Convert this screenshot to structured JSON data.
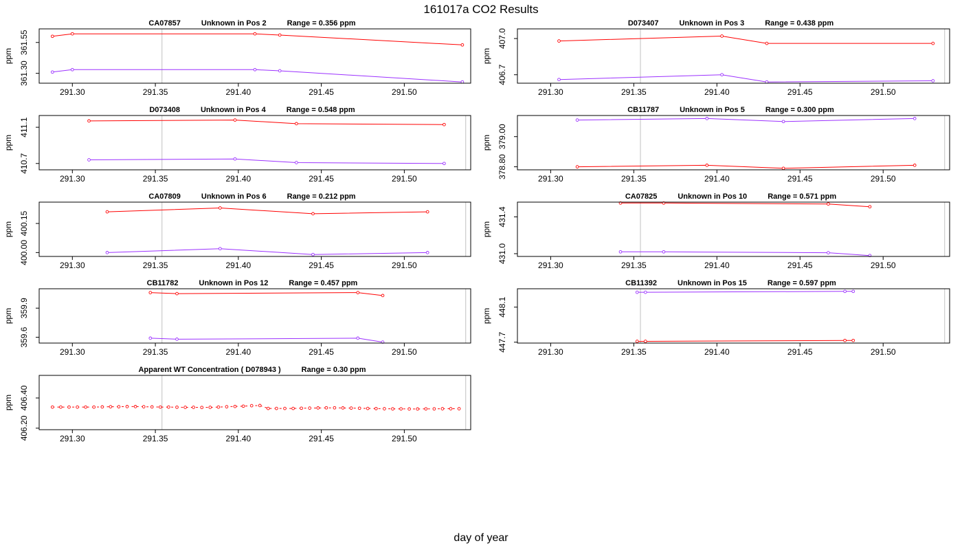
{
  "page": {
    "title": "161017a  CO2 Results",
    "xlabel": "day of year"
  },
  "colors": {
    "red_series": "#ff0000",
    "purple_series": "#9b30ff",
    "frame": "#000000",
    "vline": "#c0c0c0"
  },
  "chart_data": [
    {
      "type": "line",
      "title_parts": [
        "CA07857",
        "Unknown in Pos 2",
        "Range =  0.356 ppm"
      ],
      "ylabel": "ppm",
      "xlim": [
        291.28,
        291.54
      ],
      "ylim": [
        361.22,
        361.66
      ],
      "x_ticks": [
        "291.30",
        "291.35",
        "291.40",
        "291.45",
        "291.50"
      ],
      "y_ticks": [
        "361.30",
        "361.55"
      ],
      "vlines": [
        291.354
      ],
      "series": [
        {
          "color": "red",
          "x": [
            291.288,
            291.3,
            291.41,
            291.425,
            291.535
          ],
          "y": [
            361.6,
            361.62,
            361.62,
            361.61,
            361.53
          ]
        },
        {
          "color": "purple",
          "x": [
            291.288,
            291.3,
            291.41,
            291.425,
            291.535
          ],
          "y": [
            361.31,
            361.33,
            361.33,
            361.32,
            361.23
          ]
        }
      ]
    },
    {
      "type": "line",
      "title_parts": [
        "D073407",
        "Unknown in Pos 3",
        "Range =  0.438 ppm"
      ],
      "ylabel": "ppm",
      "xlim": [
        291.28,
        291.54
      ],
      "ylim": [
        406.63,
        407.08
      ],
      "x_ticks": [
        "291.30",
        "291.35",
        "291.40",
        "291.45",
        "291.50"
      ],
      "y_ticks": [
        "406.7",
        "407.0"
      ],
      "vlines": [
        291.354,
        291.537
      ],
      "series": [
        {
          "color": "red",
          "x": [
            291.305,
            291.403,
            291.43,
            291.53
          ],
          "y": [
            406.98,
            407.02,
            406.96,
            406.96
          ]
        },
        {
          "color": "purple",
          "x": [
            291.305,
            291.403,
            291.43,
            291.53
          ],
          "y": [
            406.66,
            406.7,
            406.64,
            406.65
          ]
        }
      ]
    },
    {
      "type": "line",
      "title_parts": [
        "D073408",
        "Unknown in Pos 4",
        "Range =  0.548 ppm"
      ],
      "ylabel": "ppm",
      "xlim": [
        291.28,
        291.54
      ],
      "ylim": [
        410.63,
        411.23
      ],
      "x_ticks": [
        "291.30",
        "291.35",
        "291.40",
        "291.45",
        "291.50"
      ],
      "y_ticks": [
        "410.7",
        "411.1"
      ],
      "vlines": [
        291.354,
        291.537
      ],
      "series": [
        {
          "color": "red",
          "x": [
            291.31,
            291.398,
            291.435,
            291.524
          ],
          "y": [
            411.17,
            411.18,
            411.14,
            411.13
          ]
        },
        {
          "color": "purple",
          "x": [
            291.31,
            291.398,
            291.435,
            291.524
          ],
          "y": [
            410.74,
            410.75,
            410.71,
            410.7
          ]
        }
      ]
    },
    {
      "type": "line",
      "title_parts": [
        "CB11787",
        "Unknown in Pos 5",
        "Range =  0.300 ppm"
      ],
      "ylabel": "ppm",
      "xlim": [
        291.28,
        291.54
      ],
      "ylim": [
        378.78,
        379.14
      ],
      "x_ticks": [
        "291.30",
        "291.35",
        "291.40",
        "291.45",
        "291.50"
      ],
      "y_ticks": [
        "378.80",
        "379.00"
      ],
      "vlines": [
        291.354,
        291.537
      ],
      "series": [
        {
          "color": "purple",
          "x": [
            291.316,
            291.394,
            291.44,
            291.519
          ],
          "y": [
            379.11,
            379.12,
            379.1,
            379.12
          ]
        },
        {
          "color": "red",
          "x": [
            291.316,
            291.394,
            291.44,
            291.519
          ],
          "y": [
            378.8,
            378.81,
            378.79,
            378.81
          ]
        }
      ]
    },
    {
      "type": "line",
      "title_parts": [
        "CA07809",
        "Unknown in Pos 6",
        "Range =  0.212 ppm"
      ],
      "ylabel": "ppm",
      "xlim": [
        291.28,
        291.54
      ],
      "ylim": [
        399.98,
        400.26
      ],
      "x_ticks": [
        "291.30",
        "291.35",
        "291.40",
        "291.45",
        "291.50"
      ],
      "y_ticks": [
        "400.00",
        "400.15"
      ],
      "vlines": [
        291.354,
        291.537
      ],
      "series": [
        {
          "color": "red",
          "x": [
            291.321,
            291.389,
            291.445,
            291.514
          ],
          "y": [
            400.21,
            400.23,
            400.2,
            400.21
          ]
        },
        {
          "color": "purple",
          "x": [
            291.321,
            291.389,
            291.445,
            291.514
          ],
          "y": [
            400.0,
            400.02,
            399.99,
            400.0
          ]
        }
      ]
    },
    {
      "type": "line",
      "title_parts": [
        "CA07825",
        "Unknown in Pos 10",
        "Range =  0.571 ppm"
      ],
      "ylabel": "ppm",
      "xlim": [
        291.28,
        291.54
      ],
      "ylim": [
        430.97,
        431.56
      ],
      "x_ticks": [
        "291.30",
        "291.35",
        "291.40",
        "291.45",
        "291.50"
      ],
      "y_ticks": [
        "431.0",
        "431.4"
      ],
      "vlines": [
        291.354,
        291.537
      ],
      "series": [
        {
          "color": "red",
          "x": [
            291.342,
            291.368,
            291.467,
            291.492
          ],
          "y": [
            431.55,
            431.55,
            431.54,
            431.51
          ]
        },
        {
          "color": "purple",
          "x": [
            291.342,
            291.368,
            291.467,
            291.492
          ],
          "y": [
            431.02,
            431.02,
            431.01,
            430.98
          ]
        }
      ]
    },
    {
      "type": "line",
      "title_parts": [
        "CB11782",
        "Unknown in Pos 12",
        "Range =  0.457 ppm"
      ],
      "ylabel": "ppm",
      "xlim": [
        291.28,
        291.54
      ],
      "ylim": [
        359.54,
        360.1
      ],
      "x_ticks": [
        "291.30",
        "291.35",
        "291.40",
        "291.45",
        "291.50"
      ],
      "y_ticks": [
        "359.6",
        "359.9"
      ],
      "vlines": [
        291.354,
        291.537
      ],
      "series": [
        {
          "color": "red",
          "x": [
            291.347,
            291.363,
            291.472,
            291.487
          ],
          "y": [
            360.06,
            360.05,
            360.06,
            360.03
          ]
        },
        {
          "color": "purple",
          "x": [
            291.347,
            291.363,
            291.472,
            291.487
          ],
          "y": [
            359.59,
            359.58,
            359.59,
            359.55
          ]
        }
      ]
    },
    {
      "type": "line",
      "title_parts": [
        "CB11392",
        "Unknown in Pos 15",
        "Range =  0.597 ppm"
      ],
      "ylabel": "ppm",
      "xlim": [
        291.28,
        291.54
      ],
      "ylim": [
        447.69,
        448.31
      ],
      "x_ticks": [
        "291.30",
        "291.35",
        "291.40",
        "291.45",
        "291.50"
      ],
      "y_ticks": [
        "447.7",
        "448.1"
      ],
      "vlines": [
        291.354,
        291.537
      ],
      "series": [
        {
          "color": "purple",
          "x": [
            291.352,
            291.357,
            291.477,
            291.482
          ],
          "y": [
            448.27,
            448.27,
            448.28,
            448.28
          ]
        },
        {
          "color": "red",
          "x": [
            291.352,
            291.357,
            291.477,
            291.482
          ],
          "y": [
            447.71,
            447.71,
            447.72,
            447.72
          ]
        }
      ]
    },
    {
      "type": "line",
      "title_parts": [
        "Apparent WT Concentration ( D078943 )",
        "Range = 0.30 ppm"
      ],
      "ylabel": "ppm",
      "xlim": [
        291.28,
        291.54
      ],
      "ylim": [
        406.19,
        406.55
      ],
      "x_ticks": [
        "291.30",
        "291.35",
        "291.40",
        "291.45",
        "291.50"
      ],
      "y_ticks": [
        "406.20",
        "406.40"
      ],
      "vlines": [
        291.354,
        291.537
      ],
      "series": [
        {
          "color": "red",
          "dashed": true,
          "x": [
            291.288,
            291.293,
            291.298,
            291.303,
            291.308,
            291.313,
            291.318,
            291.323,
            291.328,
            291.333,
            291.338,
            291.343,
            291.348,
            291.353,
            291.358,
            291.363,
            291.368,
            291.373,
            291.378,
            291.383,
            291.388,
            291.393,
            291.398,
            291.403,
            291.408,
            291.413,
            291.418,
            291.423,
            291.428,
            291.433,
            291.438,
            291.443,
            291.448,
            291.453,
            291.458,
            291.463,
            291.468,
            291.473,
            291.478,
            291.483,
            291.488,
            291.493,
            291.498,
            291.503,
            291.508,
            291.513,
            291.518,
            291.523,
            291.528,
            291.533
          ],
          "y": [
            406.34,
            406.34,
            406.34,
            406.34,
            406.34,
            406.34,
            406.341,
            406.342,
            406.342,
            406.343,
            406.343,
            406.342,
            406.341,
            406.34,
            406.34,
            406.339,
            406.338,
            406.338,
            406.337,
            406.338,
            406.34,
            406.342,
            406.344,
            406.346,
            406.349,
            406.35,
            406.331,
            406.331,
            406.331,
            406.331,
            406.332,
            406.333,
            406.334,
            406.335,
            406.335,
            406.334,
            406.333,
            406.332,
            406.331,
            406.33,
            406.329,
            406.328,
            406.328,
            406.327,
            406.327,
            406.328,
            406.328,
            406.329,
            406.329,
            406.329
          ]
        }
      ]
    }
  ]
}
